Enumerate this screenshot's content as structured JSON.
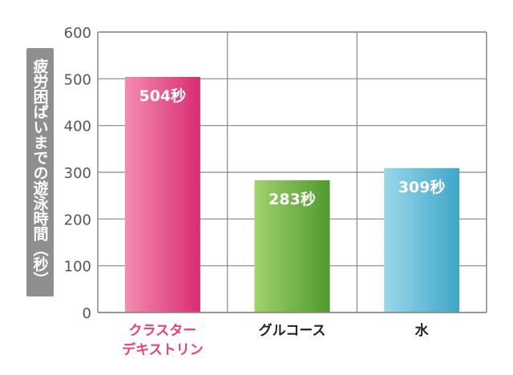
{
  "chart_data": {
    "type": "bar",
    "ylabel": "疲労困ぱいまでの遊泳時間（秒）",
    "xlabel": "",
    "title": "",
    "ylim": [
      0,
      600
    ],
    "yticks": [
      0,
      100,
      200,
      300,
      400,
      500,
      600
    ],
    "grid": true,
    "categories": [
      "クラスターデキストリン",
      "グルコース",
      "水"
    ],
    "category_lines": [
      [
        "クラスター",
        "デキストリン"
      ],
      [
        "グルコース"
      ],
      [
        "水"
      ]
    ],
    "values": [
      504,
      283,
      309
    ],
    "value_labels": [
      "504秒",
      "283秒",
      "309秒"
    ],
    "category_label_colors": [
      "#e8407a",
      "#222222",
      "#222222"
    ],
    "bar_colors": [
      {
        "light": "#f48cb0",
        "dark": "#d92c72"
      },
      {
        "light": "#9fd26a",
        "dark": "#4f9a2e"
      },
      {
        "light": "#9ad8ea",
        "dark": "#3fa6c8"
      }
    ],
    "axis_color": "#888888",
    "tick_label_color": "#555555",
    "ylabel_box_color": "#8f8f8f"
  }
}
